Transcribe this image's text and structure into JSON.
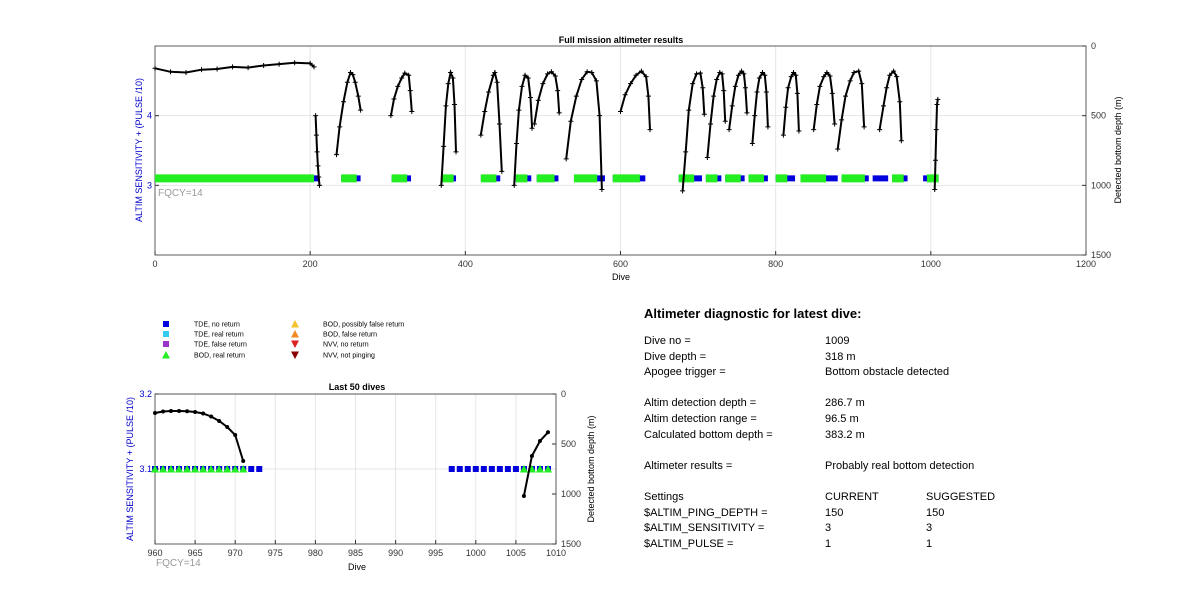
{
  "chart_data": [
    {
      "type": "scatter",
      "title": "Full mission altimeter results",
      "xlabel": "Dive",
      "ylabel": "ALTIM SENSITIVITY + (PULSE /10)",
      "y2label": "Detected bottom depth (m)",
      "xlim": [
        0,
        1200
      ],
      "ylim": [
        2,
        5
      ],
      "y2lim": [
        1500,
        0
      ],
      "xticks": [
        0,
        200,
        400,
        600,
        800,
        1000,
        1200
      ],
      "yticks": [
        3,
        4
      ],
      "y2ticks": [
        0,
        500,
        1000,
        1500
      ],
      "grid": true,
      "annotation": "FQCY=14",
      "marker_level": 3.1,
      "tde_no_return_runs": [
        [
          0,
          212
        ],
        [
          240,
          265
        ],
        [
          305,
          330
        ],
        [
          370,
          388
        ],
        [
          420,
          445
        ],
        [
          465,
          485
        ],
        [
          492,
          520
        ],
        [
          540,
          580
        ],
        [
          590,
          632
        ],
        [
          675,
          705
        ],
        [
          710,
          730
        ],
        [
          735,
          760
        ],
        [
          765,
          790
        ],
        [
          800,
          825
        ],
        [
          832,
          880
        ],
        [
          885,
          920
        ],
        [
          925,
          945
        ],
        [
          950,
          970
        ],
        [
          990,
          1010
        ]
      ],
      "bod_real_return_runs": [
        [
          0,
          205
        ],
        [
          240,
          260
        ],
        [
          305,
          325
        ],
        [
          370,
          385
        ],
        [
          420,
          440
        ],
        [
          465,
          480
        ],
        [
          492,
          515
        ],
        [
          540,
          570
        ],
        [
          590,
          625
        ],
        [
          675,
          695
        ],
        [
          710,
          725
        ],
        [
          735,
          755
        ],
        [
          765,
          785
        ],
        [
          800,
          815
        ],
        [
          832,
          865
        ],
        [
          885,
          915
        ],
        [
          950,
          965
        ],
        [
          995,
          1010
        ]
      ],
      "bottom_depth_segments": [
        {
          "x": [
            0,
            20,
            40,
            60,
            80,
            100,
            120,
            140,
            160,
            180,
            200,
            205
          ],
          "y": [
            160,
            185,
            190,
            170,
            165,
            150,
            155,
            140,
            130,
            120,
            125,
            150
          ]
        },
        {
          "x": [
            207,
            208,
            209,
            210,
            211,
            212
          ],
          "y": [
            500,
            640,
            760,
            860,
            940,
            1000
          ]
        },
        {
          "x": [
            234,
            238,
            243,
            248,
            252,
            255,
            258,
            262,
            265
          ],
          "y": [
            780,
            580,
            400,
            260,
            190,
            205,
            260,
            360,
            460
          ]
        },
        {
          "x": [
            304,
            308,
            313,
            318,
            322,
            327,
            329,
            331
          ],
          "y": [
            500,
            380,
            290,
            230,
            195,
            210,
            320,
            470
          ]
        },
        {
          "x": [
            369,
            372,
            375,
            378,
            381,
            384,
            386,
            388
          ],
          "y": [
            1000,
            720,
            430,
            270,
            190,
            230,
            420,
            760
          ]
        },
        {
          "x": [
            420,
            425,
            430,
            436,
            438,
            441,
            444,
            447
          ],
          "y": [
            640,
            470,
            330,
            210,
            190,
            260,
            560,
            900
          ]
        },
        {
          "x": [
            463,
            466,
            469,
            473,
            477,
            481,
            484,
            486
          ],
          "y": [
            1000,
            700,
            460,
            290,
            210,
            230,
            370,
            590
          ]
        },
        {
          "x": [
            489,
            494,
            500,
            506,
            511,
            516,
            519,
            521
          ],
          "y": [
            560,
            390,
            270,
            200,
            185,
            215,
            320,
            480
          ]
        },
        {
          "x": [
            530,
            536,
            543,
            550,
            557,
            563,
            569,
            573,
            576
          ],
          "y": [
            810,
            540,
            360,
            240,
            185,
            190,
            250,
            500,
            1030
          ]
        },
        {
          "x": [
            600,
            606,
            613,
            620,
            627,
            633,
            636,
            638
          ],
          "y": [
            470,
            350,
            270,
            210,
            180,
            220,
            360,
            600
          ]
        },
        {
          "x": [
            680,
            684,
            688,
            693,
            698,
            703,
            706,
            708
          ],
          "y": [
            1040,
            760,
            460,
            270,
            200,
            195,
            300,
            490
          ]
        },
        {
          "x": [
            712,
            716,
            720,
            724,
            728,
            731,
            733,
            735
          ],
          "y": [
            800,
            560,
            360,
            240,
            190,
            200,
            320,
            540
          ]
        },
        {
          "x": [
            740,
            744,
            748,
            752,
            756,
            759,
            761,
            763
          ],
          "y": [
            600,
            430,
            290,
            210,
            180,
            200,
            300,
            480
          ]
        },
        {
          "x": [
            770,
            773,
            776,
            779,
            783,
            786,
            788,
            790
          ],
          "y": [
            700,
            500,
            330,
            230,
            190,
            210,
            330,
            580
          ]
        },
        {
          "x": [
            810,
            813,
            816,
            820,
            823,
            826,
            828,
            830
          ],
          "y": [
            640,
            440,
            300,
            220,
            190,
            210,
            340,
            610
          ]
        },
        {
          "x": [
            849,
            853,
            857,
            862,
            866,
            870,
            873,
            876
          ],
          "y": [
            600,
            420,
            290,
            220,
            190,
            215,
            340,
            560
          ]
        },
        {
          "x": [
            880,
            885,
            890,
            896,
            901,
            907,
            911,
            914
          ],
          "y": [
            740,
            530,
            360,
            250,
            190,
            180,
            270,
            580
          ]
        },
        {
          "x": [
            934,
            939,
            943,
            947,
            952,
            956,
            960,
            962
          ],
          "y": [
            600,
            430,
            300,
            210,
            180,
            220,
            400,
            680
          ]
        },
        {
          "x": [
            1005,
            1006,
            1007,
            1008,
            1009
          ],
          "y": [
            1030,
            820,
            600,
            420,
            383
          ]
        }
      ]
    },
    {
      "type": "scatter",
      "title": "Last 50 dives",
      "xlabel": "Dive",
      "ylabel": "ALTIM SENSITIVITY + (PULSE /10)",
      "y2label": "Detected bottom depth (m)",
      "xlim": [
        960,
        1010
      ],
      "ylim": [
        3.0,
        3.2
      ],
      "y2lim": [
        1500,
        0
      ],
      "xticks": [
        960,
        965,
        970,
        975,
        980,
        985,
        990,
        995,
        1000,
        1005,
        1010
      ],
      "yticks": [
        3.1,
        3.2
      ],
      "y2ticks": [
        0,
        500,
        1000,
        1500
      ],
      "grid": true,
      "annotation": "FQCY=14",
      "marker_level": 3.1,
      "tde_no_return_x": [
        960,
        961,
        962,
        963,
        964,
        965,
        966,
        967,
        968,
        969,
        970,
        971,
        972,
        973,
        997,
        998,
        999,
        1000,
        1001,
        1002,
        1003,
        1004,
        1005,
        1006,
        1007,
        1008,
        1009
      ],
      "bod_real_return_x": [
        960,
        961,
        962,
        963,
        964,
        965,
        966,
        967,
        968,
        969,
        970,
        971,
        1006,
        1007,
        1008,
        1009
      ],
      "bottom_depth_segments": [
        {
          "x": [
            960,
            961,
            962,
            963,
            964,
            965,
            966,
            967,
            968,
            969,
            970,
            971
          ],
          "y": [
            190,
            175,
            170,
            170,
            172,
            180,
            195,
            225,
            270,
            330,
            410,
            670
          ]
        },
        {
          "x": [
            1006,
            1007,
            1008,
            1009
          ],
          "y": [
            1020,
            620,
            470,
            383
          ]
        }
      ]
    }
  ],
  "legend": {
    "entries": [
      {
        "label": "TDE, no return",
        "color": "#0000dd",
        "shape": "square"
      },
      {
        "label": "TDE, real return",
        "color": "#33ccee",
        "shape": "square"
      },
      {
        "label": "TDE, false return",
        "color": "#9933cc",
        "shape": "square"
      },
      {
        "label": "BOD, real return",
        "color": "#22ee22",
        "shape": "triangle-up"
      },
      {
        "label": "BOD, possibly false return",
        "color": "#f4c430",
        "shape": "triangle-up"
      },
      {
        "label": "BOD, false return",
        "color": "#f08a24",
        "shape": "triangle-up"
      },
      {
        "label": "NVV, no return",
        "color": "#dd2222",
        "shape": "triangle-down"
      },
      {
        "label": "NVV, not pinging",
        "color": "#8b0000",
        "shape": "triangle-down"
      }
    ]
  },
  "diagnostic": {
    "title": "Altimeter diagnostic for latest dive:",
    "dive_no_label": "Dive no =",
    "dive_no": "1009",
    "dive_depth_label": "Dive depth =",
    "dive_depth": "318 m",
    "apogee_label": "Apogee trigger =",
    "apogee": "Bottom obstacle detected",
    "altim_depth_label": "Altim detection depth =",
    "altim_depth": "286.7 m",
    "altim_range_label": "Altim detection range =",
    "altim_range": "96.5 m",
    "calc_depth_label": "Calculated bottom depth =",
    "calc_depth": "383.2 m",
    "results_label": "Altimeter results =",
    "results": "Probably real bottom detection",
    "settings_label": "Settings",
    "current_label": "CURRENT",
    "suggested_label": "SUGGESTED",
    "settings": [
      {
        "name": "$ALTIM_PING_DEPTH =",
        "current": "150",
        "suggested": "150"
      },
      {
        "name": "$ALTIM_SENSITIVITY =",
        "current": "3",
        "suggested": "3"
      },
      {
        "name": "$ALTIM_PULSE =",
        "current": "1",
        "suggested": "1"
      }
    ]
  }
}
